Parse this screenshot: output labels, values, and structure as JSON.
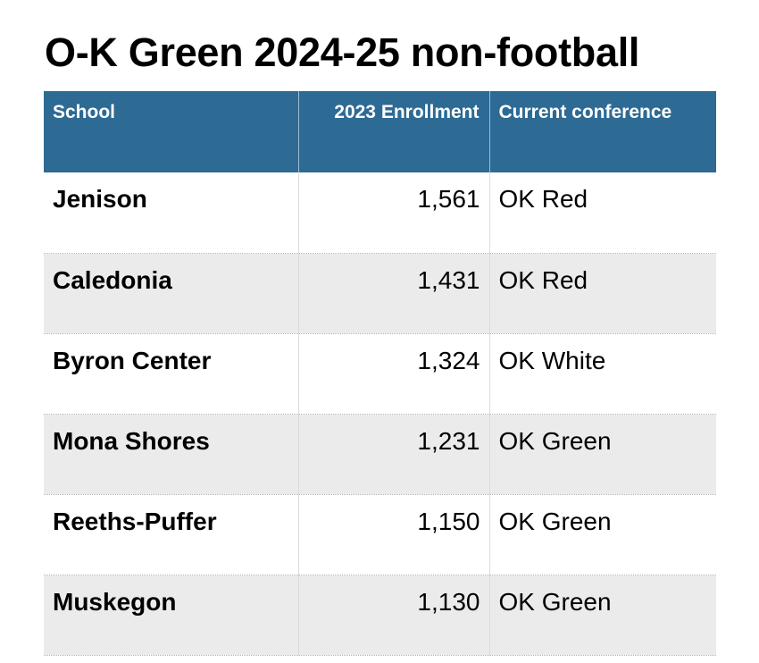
{
  "title": "O-K Green 2024-25 non-football",
  "table": {
    "headers": {
      "school": "School",
      "enrollment": "2023 Enrollment",
      "conference": "Current conference"
    },
    "rows": [
      {
        "school": "Jenison",
        "enrollment": "1,561",
        "conference": "OK Red"
      },
      {
        "school": "Caledonia",
        "enrollment": "1,431",
        "conference": "OK Red"
      },
      {
        "school": "Byron Center",
        "enrollment": "1,324",
        "conference": "OK White"
      },
      {
        "school": "Mona Shores",
        "enrollment": "1,231",
        "conference": "OK Green"
      },
      {
        "school": "Reeths-Puffer",
        "enrollment": "1,150",
        "conference": "OK Green"
      },
      {
        "school": "Muskegon",
        "enrollment": "1,130",
        "conference": "OK Green"
      }
    ]
  },
  "colors": {
    "header_background": "#2d6a94",
    "header_text": "#ffffff",
    "stripe_background": "#ebebeb"
  }
}
